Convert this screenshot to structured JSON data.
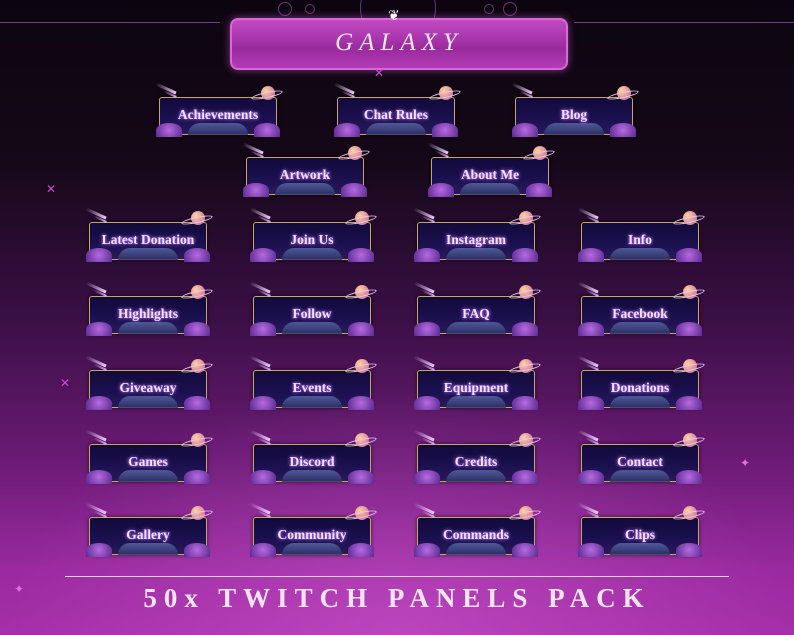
{
  "header": {
    "title": "GALAXY"
  },
  "panels": [
    {
      "label": "Achievements"
    },
    {
      "label": "Chat Rules"
    },
    {
      "label": "Blog"
    },
    {
      "label": "Artwork"
    },
    {
      "label": "About Me"
    },
    {
      "label": "Latest Donation"
    },
    {
      "label": "Join Us"
    },
    {
      "label": "Instagram"
    },
    {
      "label": "Info"
    },
    {
      "label": "Highlights"
    },
    {
      "label": "Follow"
    },
    {
      "label": "FAQ"
    },
    {
      "label": "Facebook"
    },
    {
      "label": "Giveaway"
    },
    {
      "label": "Events"
    },
    {
      "label": "Equipment"
    },
    {
      "label": "Donations"
    },
    {
      "label": "Games"
    },
    {
      "label": "Discord"
    },
    {
      "label": "Credits"
    },
    {
      "label": "Contact"
    },
    {
      "label": "Gallery"
    },
    {
      "label": "Community"
    },
    {
      "label": "Commands"
    },
    {
      "label": "Clips"
    }
  ],
  "footer": {
    "text": "50x TWITCH PANELS PACK"
  },
  "colors": {
    "accent": "#b23cb6",
    "frame": "#c6a660",
    "panel_bg": "#1b1050"
  }
}
